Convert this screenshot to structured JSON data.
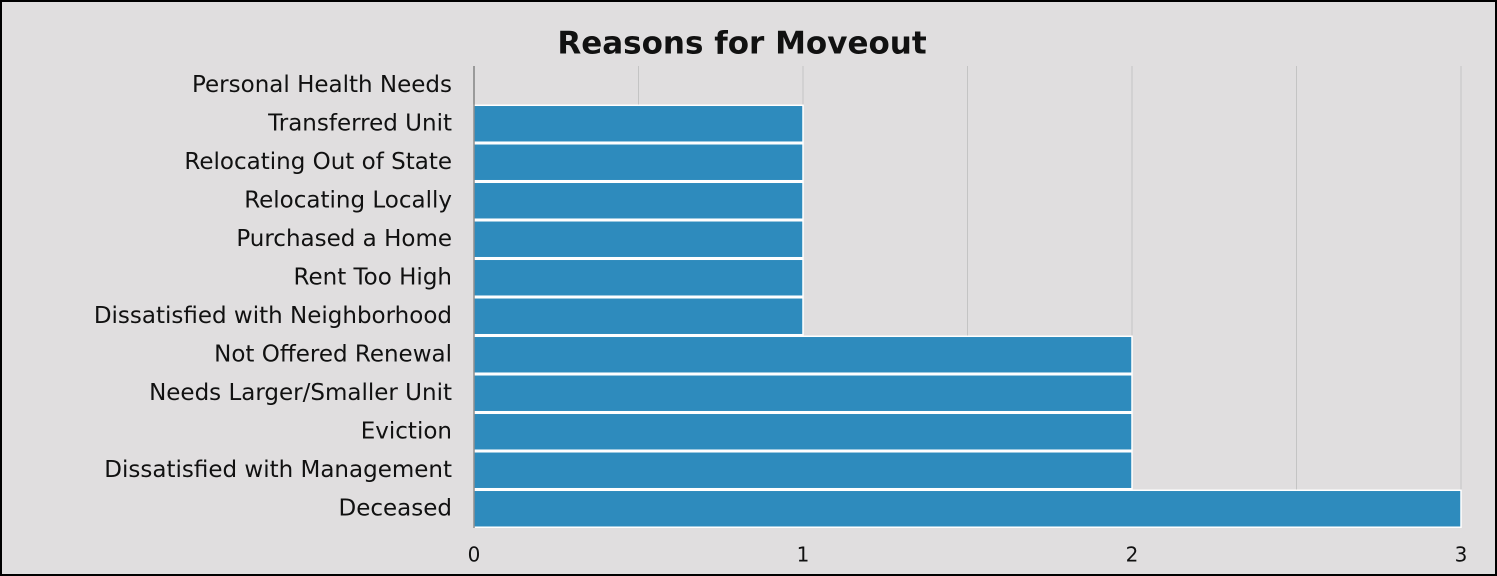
{
  "chart_data": {
    "type": "hbar",
    "title": "Reasons for Moveout",
    "categories": [
      "Personal Health Needs",
      "Transferred Unit",
      "Relocating Out of State",
      "Relocating Locally",
      "Purchased a Home",
      "Rent Too High",
      "Dissatisfied with Neighborhood",
      "Not Offered Renewal",
      "Needs Larger/Smaller Unit",
      "Eviction",
      "Dissatisfied with Management",
      "Deceased"
    ],
    "values": [
      0,
      1,
      1,
      1,
      1,
      1,
      1,
      2,
      2,
      2,
      2,
      3
    ],
    "color": "#2e8bbd",
    "xlim": [
      0,
      3
    ],
    "xticks": [
      0,
      1,
      2,
      3
    ],
    "minor_xticks": [
      0.5,
      1.5,
      2.5
    ],
    "grid": true
  }
}
